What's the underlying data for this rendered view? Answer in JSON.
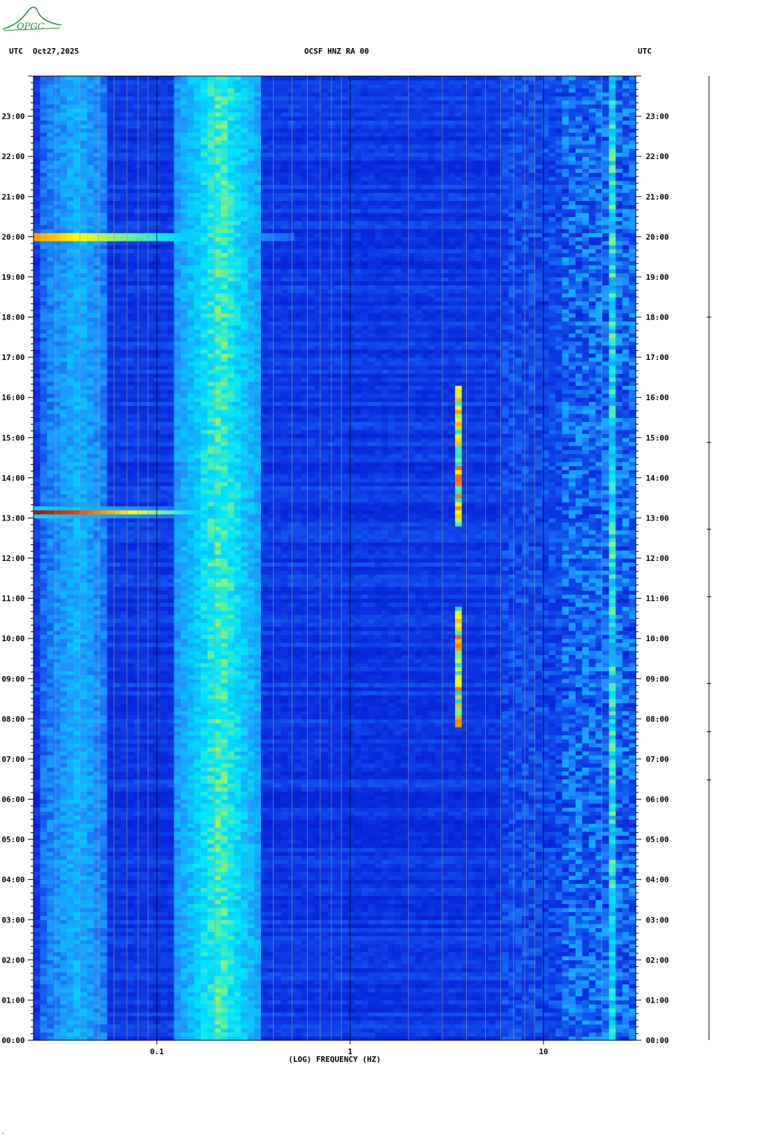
{
  "logo": {
    "text": "OPGC",
    "color": "#2e8b3a"
  },
  "header": {
    "left_tz": "UTC",
    "date": "Oct27,2025",
    "station": "OCSF HNZ RA 00",
    "right_tz": "UTC"
  },
  "chart_data": {
    "type": "heatmap",
    "title": "OCSF HNZ RA 00",
    "xlabel": "(LOG) FREQUENCY (HZ)",
    "ylabel": "UTC",
    "x_scale": "log",
    "xlim": [
      0.023,
      30
    ],
    "ylim": [
      0,
      24
    ],
    "x_tick_labels": [
      "0.1",
      "1",
      "10"
    ],
    "x_tick_values": [
      0.1,
      1,
      10
    ],
    "y_tick_labels": [
      "00:00",
      "01:00",
      "02:00",
      "03:00",
      "04:00",
      "05:00",
      "06:00",
      "07:00",
      "08:00",
      "09:00",
      "10:00",
      "11:00",
      "12:00",
      "13:00",
      "14:00",
      "15:00",
      "16:00",
      "17:00",
      "18:00",
      "19:00",
      "20:00",
      "21:00",
      "22:00",
      "23:00"
    ],
    "grid": true,
    "colormap": [
      "#0000a8",
      "#0a2ee0",
      "#1e90ff",
      "#00e5ff",
      "#ffff00",
      "#ff3300",
      "#8b0000"
    ],
    "features": [
      {
        "name": "microseism band",
        "freq_range_hz": [
          0.15,
          0.3
        ],
        "time_range_utc": [
          0,
          24
        ],
        "level": 0.55
      },
      {
        "name": "low-frequency band",
        "freq_range_hz": [
          0.03,
          0.05
        ],
        "time_range_utc": [
          0,
          24
        ],
        "level": 0.4
      },
      {
        "name": "earthquake",
        "freq_range_hz": [
          0.023,
          0.5
        ],
        "time_utc": 20.0,
        "level": 1.0
      },
      {
        "name": "earthquake",
        "freq_range_hz": [
          0.023,
          0.3
        ],
        "time_utc": 13.15,
        "level": 0.95
      },
      {
        "name": "tonal line",
        "freq_hz": 3.7,
        "time_range_utc": [
          12.8,
          16.3
        ],
        "level": 0.8
      },
      {
        "name": "tonal line",
        "freq_hz": 3.7,
        "time_range_utc": [
          7.8,
          10.8
        ],
        "level": 0.8
      },
      {
        "name": "tonal line",
        "freq_hz": 23,
        "time_range_utc": [
          0,
          24
        ],
        "level": 0.6
      }
    ]
  }
}
